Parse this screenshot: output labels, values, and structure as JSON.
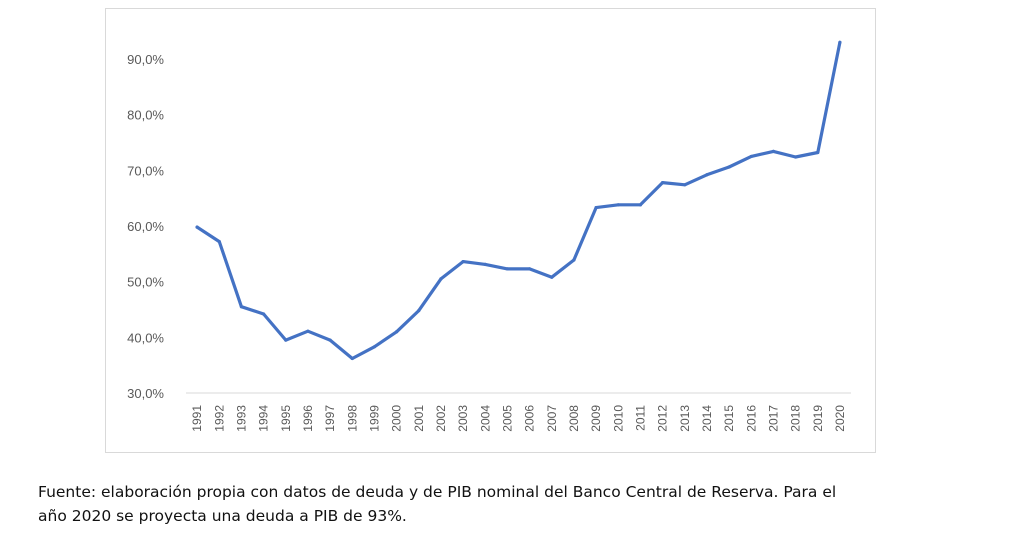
{
  "chart_data": {
    "type": "line",
    "title": "",
    "xlabel": "",
    "ylabel": "",
    "ylim": [
      30,
      93
    ],
    "y_ticks": [
      "30,0%",
      "40,0%",
      "50,0%",
      "60,0%",
      "70,0%",
      "80,0%",
      "90,0%"
    ],
    "y_tick_values": [
      30,
      40,
      50,
      60,
      70,
      80,
      90
    ],
    "categories": [
      "1991",
      "1992",
      "1993",
      "1994",
      "1995",
      "1996",
      "1997",
      "1998",
      "1999",
      "2000",
      "2001",
      "2002",
      "2003",
      "2004",
      "2005",
      "2006",
      "2007",
      "2008",
      "2009",
      "2010",
      "2011",
      "2012",
      "2013",
      "2014",
      "2015",
      "2016",
      "2017",
      "2018",
      "2019",
      "2020"
    ],
    "series": [
      {
        "values": [
          59.8,
          57.2,
          45.5,
          44.2,
          39.5,
          41.1,
          39.5,
          36.2,
          38.3,
          41.0,
          44.8,
          50.5,
          53.6,
          53.1,
          52.3,
          52.3,
          50.8,
          53.9,
          63.3,
          63.8,
          63.8,
          67.8,
          67.4,
          69.2,
          70.6,
          72.5,
          73.4,
          72.4,
          73.2,
          93.0
        ],
        "color": "#4472c4"
      }
    ],
    "grid": false,
    "legend": "none"
  },
  "caption": {
    "line1": "Fuente: elaboración propia con datos de deuda y de PIB nominal del Banco Central de Reserva. Para el",
    "line2": "año 2020 se proyecta una deuda a PIB de 93%."
  }
}
